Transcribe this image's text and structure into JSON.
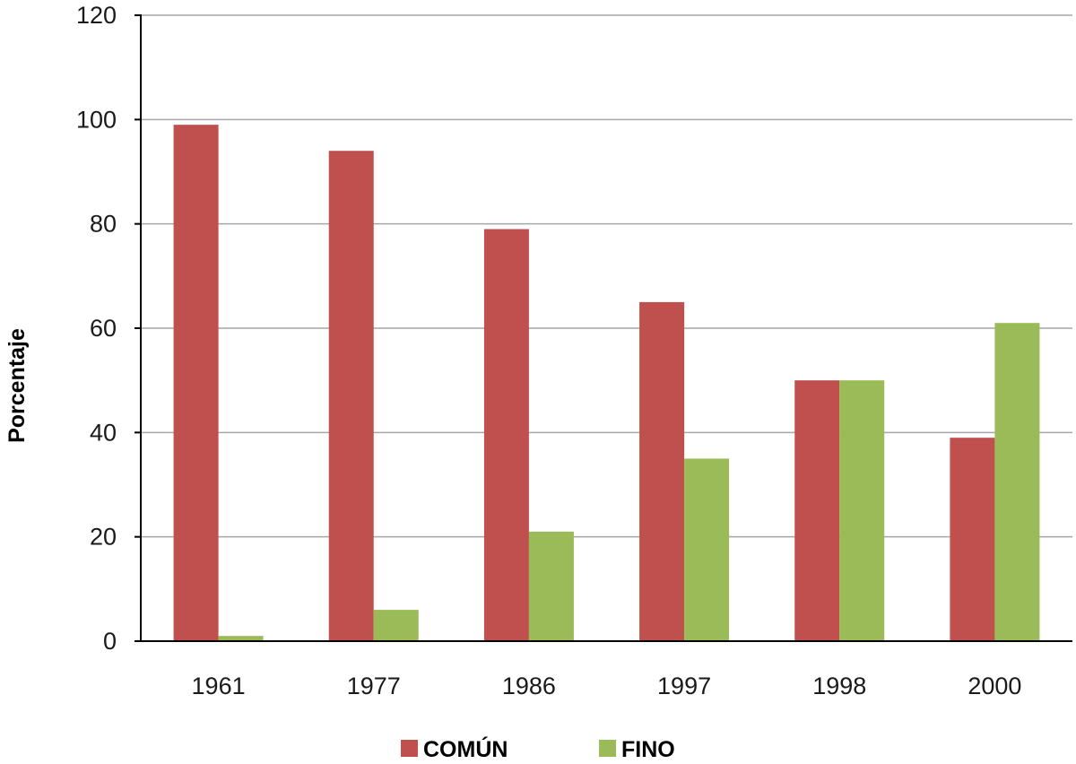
{
  "chart_data": {
    "type": "bar",
    "categories": [
      "1961",
      "1977",
      "1986",
      "1997",
      "1998",
      "2000"
    ],
    "series": [
      {
        "name": "COMÚN",
        "values": [
          99,
          94,
          79,
          65,
          50,
          39
        ],
        "color": "#C0504D"
      },
      {
        "name": "FINO",
        "values": [
          1,
          6,
          21,
          35,
          50,
          61
        ],
        "color": "#9BBB59"
      }
    ],
    "title": "",
    "xlabel": "",
    "ylabel": "Porcentaje",
    "ylim": [
      0,
      120
    ],
    "yticks": [
      "0",
      "20",
      "40",
      "60",
      "80",
      "100",
      "120"
    ],
    "grid": true,
    "legend_position": "bottom"
  }
}
